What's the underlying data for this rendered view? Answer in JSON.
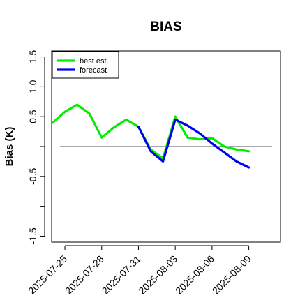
{
  "chart_data": {
    "type": "line",
    "title": "BIAS",
    "xlabel": "",
    "ylabel": "Bias (K)",
    "ylim": [
      -1.6,
      1.6
    ],
    "xlim": [
      "2025-07-23T22:00",
      "2025-08-11T14:00"
    ],
    "yticks": [
      "-1.5",
      "-0.5",
      "0.5",
      "1.0",
      "1.5"
    ],
    "yticks_minor": [
      -1.0,
      0.0
    ],
    "xticks": [
      "2025-07-25",
      "2025-07-28",
      "2025-07-31",
      "2025-08-03",
      "2025-08-06",
      "2025-08-09"
    ],
    "highlight_xtick": "2025-07-31",
    "highlight_color": "#228b22",
    "reference_line": 0.0,
    "grid": false,
    "legend_position": "top-left",
    "series": [
      {
        "name": "best est.",
        "color": "#00ee00",
        "x": [
          "2025-07-24",
          "2025-07-25",
          "2025-07-26",
          "2025-07-27",
          "2025-07-28",
          "2025-07-29",
          "2025-07-30",
          "2025-07-31",
          "2025-08-01",
          "2025-08-02",
          "2025-08-03",
          "2025-08-04",
          "2025-08-05",
          "2025-08-06",
          "2025-08-07",
          "2025-08-08",
          "2025-08-09"
        ],
        "values": [
          0.4,
          0.58,
          0.7,
          0.55,
          0.15,
          0.32,
          0.45,
          0.33,
          -0.05,
          -0.2,
          0.5,
          0.15,
          0.12,
          0.14,
          0.0,
          -0.05,
          -0.08
        ]
      },
      {
        "name": "forecast",
        "color": "#0000ee",
        "x": [
          "2025-07-31",
          "2025-08-01",
          "2025-08-02",
          "2025-08-03",
          "2025-08-04",
          "2025-08-05",
          "2025-08-06",
          "2025-08-07",
          "2025-08-08",
          "2025-08-09"
        ],
        "values": [
          0.33,
          -0.08,
          -0.25,
          0.45,
          0.35,
          0.22,
          0.05,
          -0.1,
          -0.25,
          -0.35
        ]
      }
    ]
  }
}
